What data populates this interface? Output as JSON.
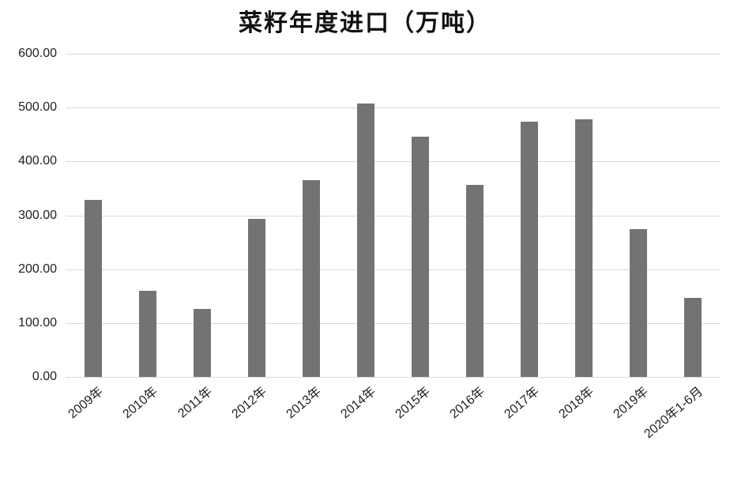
{
  "chart_data": {
    "type": "bar",
    "title": "菜籽年度进口（万吨）",
    "categories": [
      "2009年",
      "2010年",
      "2011年",
      "2012年",
      "2013年",
      "2014年",
      "2015年",
      "2016年",
      "2017年",
      "2018年",
      "2019年",
      "2020年1-6月"
    ],
    "values": [
      328,
      160,
      126,
      293,
      366,
      508,
      446,
      357,
      474,
      478,
      274,
      147
    ],
    "xlabel": "",
    "ylabel": "",
    "ylim": [
      0,
      600
    ],
    "ytick_step": 100,
    "ytick_labels": [
      "0.00",
      "100.00",
      "200.00",
      "300.00",
      "400.00",
      "500.00",
      "600.00"
    ],
    "grid": true,
    "legend": false,
    "colors": {
      "bar": "#737373",
      "gridline": "#d9d9d9",
      "tick_label": "#1f1f1f",
      "title": "#111111",
      "background": "#ffffff"
    }
  }
}
